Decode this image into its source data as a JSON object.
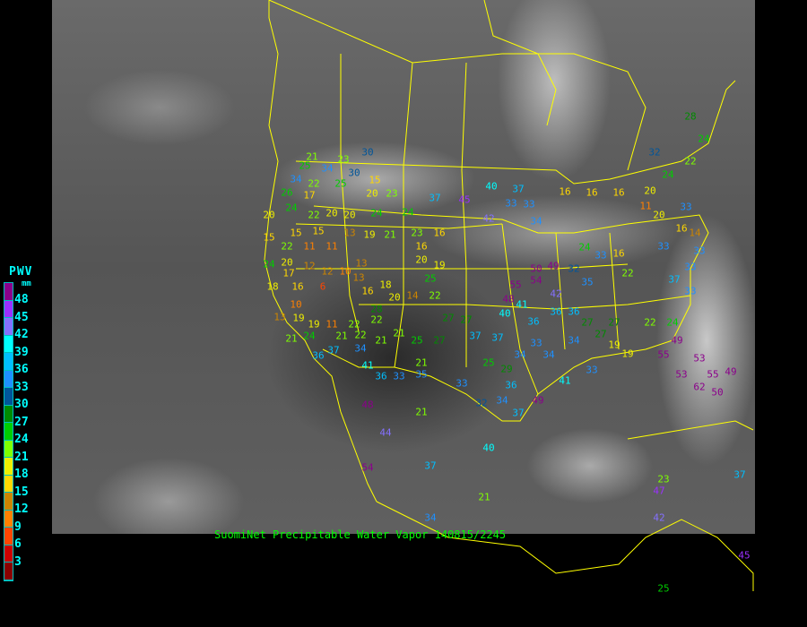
{
  "legend": {
    "title": "PWV",
    "unit": "mm",
    "labels": [
      "48",
      "45",
      "42",
      "39",
      "36",
      "33",
      "30",
      "27",
      "24",
      "21",
      "18",
      "15",
      "12",
      "9",
      "6",
      "3"
    ],
    "colors": [
      "#8b008b",
      "#9b30ff",
      "#8470ff",
      "#00ffff",
      "#00bfff",
      "#1e90ff",
      "#00559a",
      "#008b00",
      "#00cd00",
      "#7fff00",
      "#eeee00",
      "#ffd700",
      "#cd8500",
      "#ff8000",
      "#ff4500",
      "#cd0000",
      "#8b0000"
    ]
  },
  "caption": "SuomiNet Precipitable Water Vapor 140815/2245",
  "border_color": "#ffff00",
  "stations": [
    "30",
    "25",
    "34",
    "30",
    "15",
    "20",
    "23",
    "37",
    "45",
    "40",
    "37",
    "33",
    "33",
    "42",
    "34",
    "16",
    "16",
    "16",
    "20",
    "11",
    "33",
    "20",
    "16",
    "14",
    "33",
    "33",
    "33",
    "37",
    "33",
    "22",
    "24",
    "49",
    "53",
    "55",
    "53",
    "55",
    "62",
    "50",
    "49",
    "24",
    "33",
    "16",
    "22",
    "32",
    "35",
    "50",
    "49",
    "54",
    "42",
    "48",
    "55",
    "40",
    "41",
    "36",
    "36",
    "36",
    "27",
    "27",
    "27",
    "19",
    "34",
    "34",
    "33",
    "34",
    "25",
    "29",
    "36",
    "32",
    "34",
    "37",
    "49",
    "41",
    "33",
    "47",
    "23",
    "42",
    "37",
    "45",
    "25",
    "40",
    "21",
    "21",
    "37",
    "48",
    "44",
    "54",
    "34",
    "15",
    "22",
    "11",
    "11",
    "24",
    "20",
    "12",
    "12",
    "10",
    "13",
    "17",
    "18",
    "16",
    "6",
    "13",
    "16",
    "18",
    "20",
    "14",
    "22",
    "25",
    "19",
    "20",
    "16",
    "10",
    "13",
    "19",
    "19",
    "11",
    "22",
    "21",
    "22",
    "22",
    "28",
    "21",
    "24",
    "36",
    "37",
    "34",
    "21",
    "21",
    "25",
    "27",
    "21",
    "33",
    "35",
    "36",
    "41",
    "27",
    "27",
    "37",
    "37",
    "33",
    "19",
    "20",
    "15",
    "15",
    "13",
    "19",
    "21",
    "23",
    "16",
    "22",
    "20",
    "20",
    "24",
    "24",
    "24",
    "17",
    "25",
    "22",
    "26",
    "34",
    "21",
    "23",
    "24",
    "22",
    "28",
    "24",
    "32"
  ]
}
